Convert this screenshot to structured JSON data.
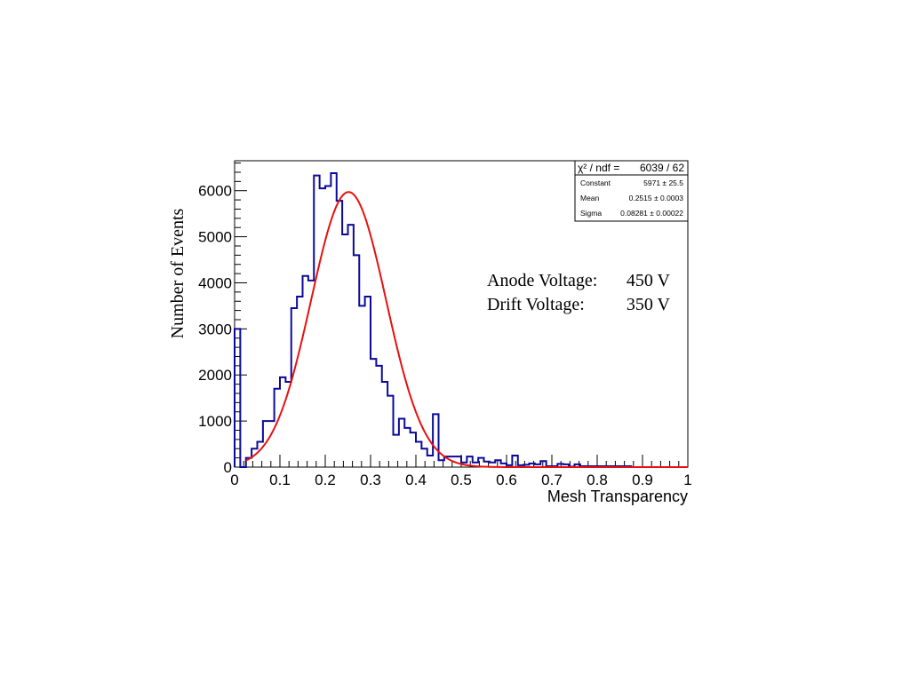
{
  "chart_data": {
    "type": "histogram",
    "xlabel": "Mesh Transparency",
    "ylabel": "Number of Events",
    "xlim": [
      0,
      1
    ],
    "ylim": [
      0,
      6650
    ],
    "x_ticks": [
      "0",
      "0.1",
      "0.2",
      "0.3",
      "0.4",
      "0.5",
      "0.6",
      "0.7",
      "0.8",
      "0.9",
      "1"
    ],
    "y_ticks": [
      "0",
      "1000",
      "2000",
      "3000",
      "4000",
      "5000",
      "6000"
    ],
    "bin_width": 0.0125,
    "bin_start": 0,
    "histogram_color": "#0a0a9a",
    "fit_color": "#e81010",
    "values": [
      3000,
      0,
      200,
      400,
      550,
      1000,
      1000,
      1700,
      1950,
      1850,
      3450,
      3700,
      4150,
      4050,
      6330,
      6050,
      6100,
      6380,
      5780,
      5050,
      5260,
      4600,
      3500,
      3700,
      2350,
      2200,
      1850,
      1550,
      700,
      1050,
      850,
      750,
      550,
      400,
      250,
      1150,
      150,
      230,
      230,
      230,
      100,
      230,
      100,
      200,
      120,
      100,
      150,
      80,
      40,
      250,
      40,
      50,
      80,
      60,
      130,
      20,
      20,
      70,
      60,
      10,
      60,
      20,
      20,
      20,
      20,
      20,
      20,
      20,
      20,
      20,
      0,
      0,
      0,
      0,
      0,
      0,
      0,
      0,
      0,
      0
    ],
    "fit": {
      "function": "gaus",
      "constant": 5971,
      "mean": 0.2515,
      "sigma": 0.08281,
      "range": [
        0.025,
        1.0
      ]
    },
    "stats_box": {
      "header_label": "χ² / ndf =",
      "header_value": "6039 / 62",
      "rows": [
        {
          "name": "Constant",
          "value": "5971 ± 25.5"
        },
        {
          "name": "Mean",
          "value": "0.2515 ± 0.0003"
        },
        {
          "name": "Sigma",
          "value": "0.08281 ± 0.00022"
        }
      ]
    },
    "annotations": [
      {
        "label": "Anode Voltage:",
        "value": "450 V"
      },
      {
        "label": "Drift Voltage:",
        "value": "350 V"
      }
    ],
    "legend_position": "top-right",
    "grid": false
  }
}
